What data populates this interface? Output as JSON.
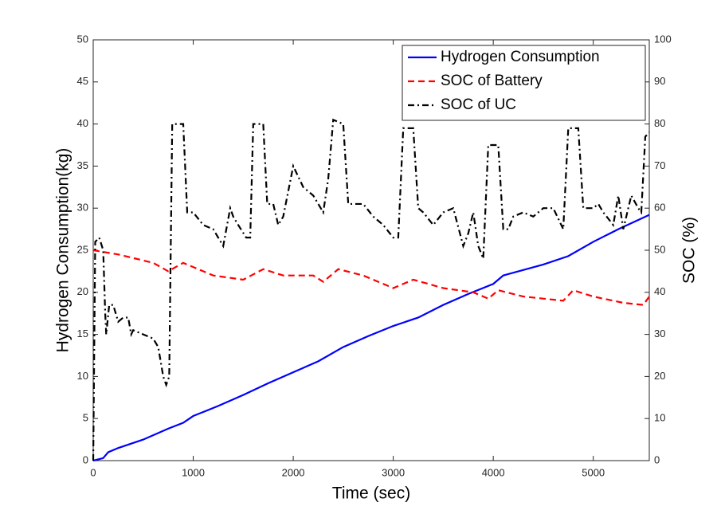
{
  "chart_data": {
    "type": "line",
    "xlabel": "Time (sec)",
    "ylabel": "Hydrogen Consumption(kg)",
    "y2label": "SOC (%)",
    "xlim": [
      0,
      5560
    ],
    "xticks": [
      0,
      1000,
      2000,
      3000,
      4000,
      5000
    ],
    "ylim": [
      0,
      50
    ],
    "yticks": [
      0,
      5,
      10,
      15,
      20,
      25,
      30,
      35,
      40,
      45,
      50
    ],
    "y2lim": [
      0,
      100
    ],
    "y2ticks": [
      0,
      10,
      20,
      30,
      40,
      50,
      60,
      70,
      80,
      90,
      100
    ],
    "grid": false,
    "legend": "upper right",
    "series": [
      {
        "name": "Hydrogen Consumption",
        "color": "#0000ff",
        "style": "solid",
        "axis": "y",
        "x": [
          0,
          100,
          150,
          250,
          500,
          750,
          900,
          1000,
          1250,
          1500,
          1750,
          2000,
          2250,
          2500,
          2750,
          3000,
          3250,
          3500,
          3750,
          4000,
          4100,
          4500,
          4750,
          5000,
          5250,
          5560
        ],
        "values": [
          0,
          0.3,
          1,
          1.5,
          2.5,
          3.8,
          4.5,
          5.3,
          6.5,
          7.8,
          9.2,
          10.5,
          11.8,
          13.5,
          14.8,
          16,
          17,
          18.5,
          19.8,
          21,
          22,
          23.3,
          24.3,
          26,
          27.5,
          29.2
        ]
      },
      {
        "name": "SOC of Battery",
        "color": "#ff0000",
        "style": "dashed",
        "axis": "y2",
        "x": [
          0,
          250,
          600,
          750,
          900,
          1000,
          1200,
          1500,
          1700,
          1900,
          2200,
          2300,
          2450,
          2700,
          3000,
          3200,
          3500,
          3800,
          3950,
          4050,
          4300,
          4700,
          4800,
          5000,
          5300,
          5500,
          5560
        ],
        "values": [
          50,
          49,
          47,
          45,
          47,
          46,
          44,
          43,
          45.5,
          44,
          44,
          42.5,
          45.5,
          44,
          41,
          43,
          41,
          40,
          38.5,
          40.5,
          39,
          38,
          40.5,
          39,
          37.5,
          37,
          39
        ]
      },
      {
        "name": "SOC of UC",
        "color": "#000000",
        "style": "dashdot",
        "axis": "y2",
        "x": [
          0,
          20,
          60,
          100,
          120,
          130,
          160,
          200,
          250,
          300,
          350,
          380,
          400,
          500,
          600,
          650,
          700,
          730,
          760,
          790,
          900,
          940,
          1000,
          1100,
          1200,
          1300,
          1370,
          1400,
          1450,
          1530,
          1570,
          1600,
          1700,
          1740,
          1800,
          1850,
          1900,
          2000,
          2100,
          2200,
          2300,
          2350,
          2400,
          2500,
          2550,
          2700,
          2800,
          2900,
          3000,
          3050,
          3100,
          3200,
          3250,
          3300,
          3400,
          3500,
          3600,
          3700,
          3750,
          3800,
          3850,
          3900,
          3950,
          4050,
          4100,
          4150,
          4200,
          4300,
          4400,
          4500,
          4600,
          4700,
          4750,
          4850,
          4900,
          5000,
          5050,
          5100,
          5200,
          5250,
          5300,
          5380,
          5450,
          5480,
          5520,
          5560
        ],
        "values": [
          0,
          52,
          53,
          50,
          35,
          30,
          37,
          37,
          33,
          34,
          34,
          30,
          31,
          30,
          29,
          27,
          20,
          18,
          20,
          80,
          80,
          59,
          59,
          56,
          55,
          51,
          60,
          58,
          56,
          53,
          53,
          80,
          80,
          61,
          61,
          56,
          58,
          70,
          65,
          63,
          59,
          67,
          81,
          80,
          61,
          61,
          58,
          56,
          53,
          53,
          79,
          79,
          60,
          59,
          56,
          59,
          60,
          51,
          54,
          59,
          51,
          48,
          75,
          75,
          55,
          55,
          58,
          59,
          58,
          60,
          60,
          55,
          79,
          79,
          60,
          60,
          61,
          59,
          56,
          63,
          55,
          63,
          60,
          59,
          77,
          78
        ]
      }
    ]
  }
}
